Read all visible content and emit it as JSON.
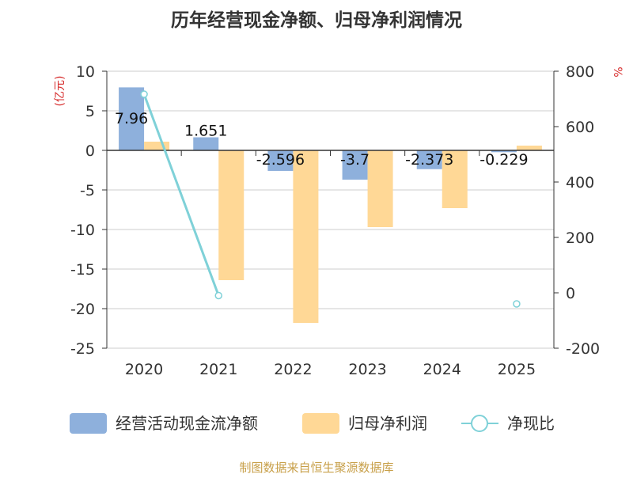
{
  "chart_data": {
    "type": "bar",
    "title": "历年经营现金净额、归母净利润情况",
    "categories": [
      "2020",
      "2021",
      "2022",
      "2023",
      "2024",
      "2025"
    ],
    "ylabel": "(亿元)",
    "y2label": "%",
    "ylim": [
      -25,
      10
    ],
    "y2lim": [
      -200,
      800
    ],
    "yticks": [
      10,
      5,
      0,
      -5,
      -10,
      -15,
      -20,
      -25
    ],
    "y2ticks": [
      800,
      600,
      400,
      200,
      0,
      -200
    ],
    "grid": true,
    "legend_position": "bottom",
    "series": [
      {
        "name": "经营活动现金流净额",
        "type": "bar",
        "axis": "left",
        "color": "#8eb0dc",
        "values": [
          7.96,
          1.651,
          -2.596,
          -3.7,
          -2.373,
          -0.229
        ],
        "labels": [
          "7.96",
          "1.651",
          "-2.596",
          "-3.7",
          "-2.373",
          "-0.229"
        ]
      },
      {
        "name": "归母净利润",
        "type": "bar",
        "axis": "left",
        "color": "#ffd896",
        "values": [
          1.1,
          -16.4,
          -21.8,
          -9.7,
          -7.3,
          0.6
        ]
      },
      {
        "name": "净现比",
        "type": "line",
        "axis": "right",
        "color": "#7fd1d8",
        "values": [
          717,
          -10,
          null,
          null,
          null,
          -40
        ]
      }
    ]
  },
  "source_note": "制图数据来自恒生聚源数据库"
}
